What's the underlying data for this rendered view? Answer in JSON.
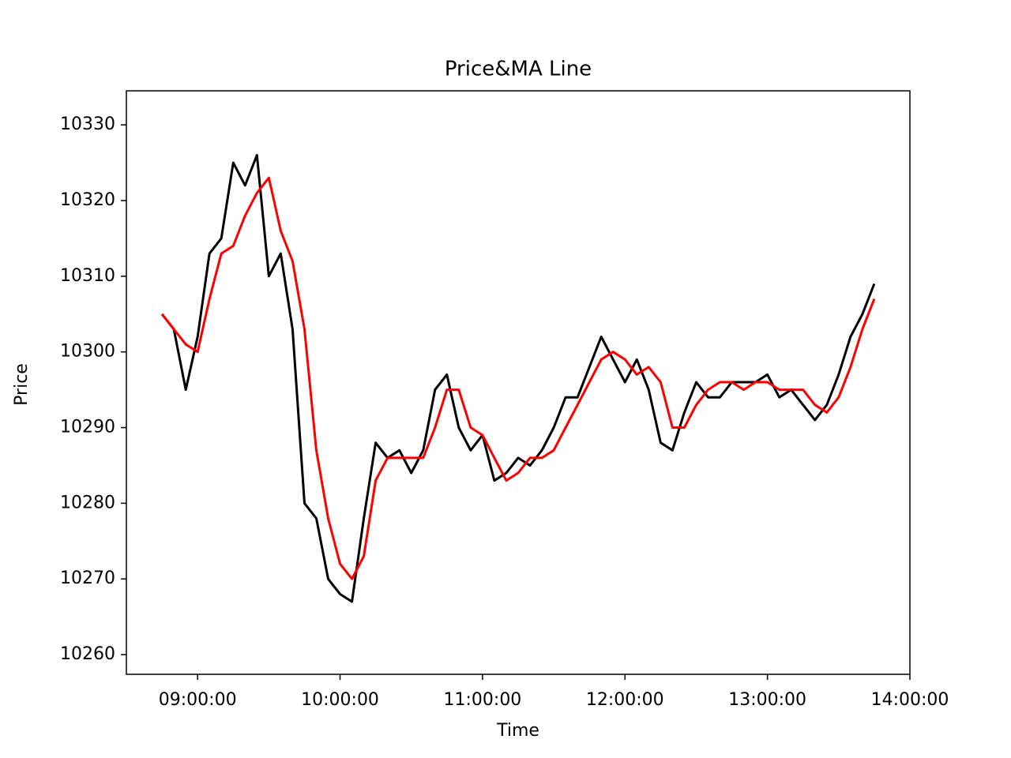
{
  "chart_data": {
    "type": "line",
    "title": "Price&MA Line",
    "x_label": "Time",
    "y_label": "Price",
    "x": [
      "08:45:00",
      "08:50:00",
      "08:55:00",
      "09:00:00",
      "09:05:00",
      "09:10:00",
      "09:15:00",
      "09:20:00",
      "09:25:00",
      "09:30:00",
      "09:35:00",
      "09:40:00",
      "09:45:00",
      "09:50:00",
      "09:55:00",
      "10:00:00",
      "10:05:00",
      "10:10:00",
      "10:15:00",
      "10:20:00",
      "10:25:00",
      "10:30:00",
      "10:35:00",
      "10:40:00",
      "10:45:00",
      "10:50:00",
      "10:55:00",
      "11:00:00",
      "11:05:00",
      "11:10:00",
      "11:15:00",
      "11:20:00",
      "11:25:00",
      "11:30:00",
      "11:35:00",
      "11:40:00",
      "11:45:00",
      "11:50:00",
      "11:55:00",
      "12:00:00",
      "12:05:00",
      "12:10:00",
      "12:15:00",
      "12:20:00",
      "12:25:00",
      "12:30:00",
      "12:35:00",
      "12:40:00",
      "12:45:00",
      "12:50:00",
      "12:55:00",
      "13:00:00",
      "13:05:00",
      "13:10:00",
      "13:15:00",
      "13:20:00",
      "13:25:00",
      "13:30:00",
      "13:35:00",
      "13:40:00",
      "13:45:00"
    ],
    "series": [
      {
        "color": "#000000",
        "width": 3,
        "values": [
          10305,
          10303,
          10295,
          10302,
          10313,
          10315,
          10325,
          10322,
          10326,
          10310,
          10313,
          10303,
          10280,
          10278,
          10270,
          10268,
          10267,
          10278,
          10288,
          10286,
          10287,
          10284,
          10287,
          10295,
          10297,
          10290,
          10287,
          10289,
          10283,
          10284,
          10286,
          10285,
          10287,
          10290,
          10294,
          10294,
          10298,
          10302,
          10299,
          10296,
          10299,
          10295,
          10288,
          10287,
          10292,
          10296,
          10294,
          10294,
          10296,
          10296,
          10296,
          10297,
          10294,
          10295,
          10293,
          10291,
          10293,
          10297,
          10302,
          10305,
          10309
        ]
      },
      {
        "color": "#ff0000",
        "width": 3,
        "values": [
          10305,
          10303,
          10301,
          10300,
          10307,
          10313,
          10314,
          10318,
          10321,
          10323,
          10316,
          10312,
          10303,
          10287,
          10278,
          10272,
          10270,
          10273,
          10283,
          10286,
          10286,
          10286,
          10286,
          10290,
          10295,
          10295,
          10290,
          10289,
          10286,
          10283,
          10284,
          10286,
          10286,
          10287,
          10290,
          10293,
          10296,
          10299,
          10300,
          10299,
          10297,
          10298,
          10296,
          10290,
          10290,
          10293,
          10295,
          10296,
          10296,
          10295,
          10296,
          10296,
          10295,
          10295,
          10295,
          10293,
          10292,
          10294,
          10298,
          10303,
          10307
        ]
      }
    ],
    "xlim": [
      "08:30:00",
      "14:00:00"
    ],
    "xticks": [
      "09:00:00",
      "10:00:00",
      "11:00:00",
      "12:00:00",
      "13:00:00",
      "14:00:00"
    ],
    "ylim": [
      10257.4,
      10334.5
    ],
    "yticks": [
      10260,
      10270,
      10280,
      10290,
      10300,
      10310,
      10320,
      10330
    ]
  }
}
